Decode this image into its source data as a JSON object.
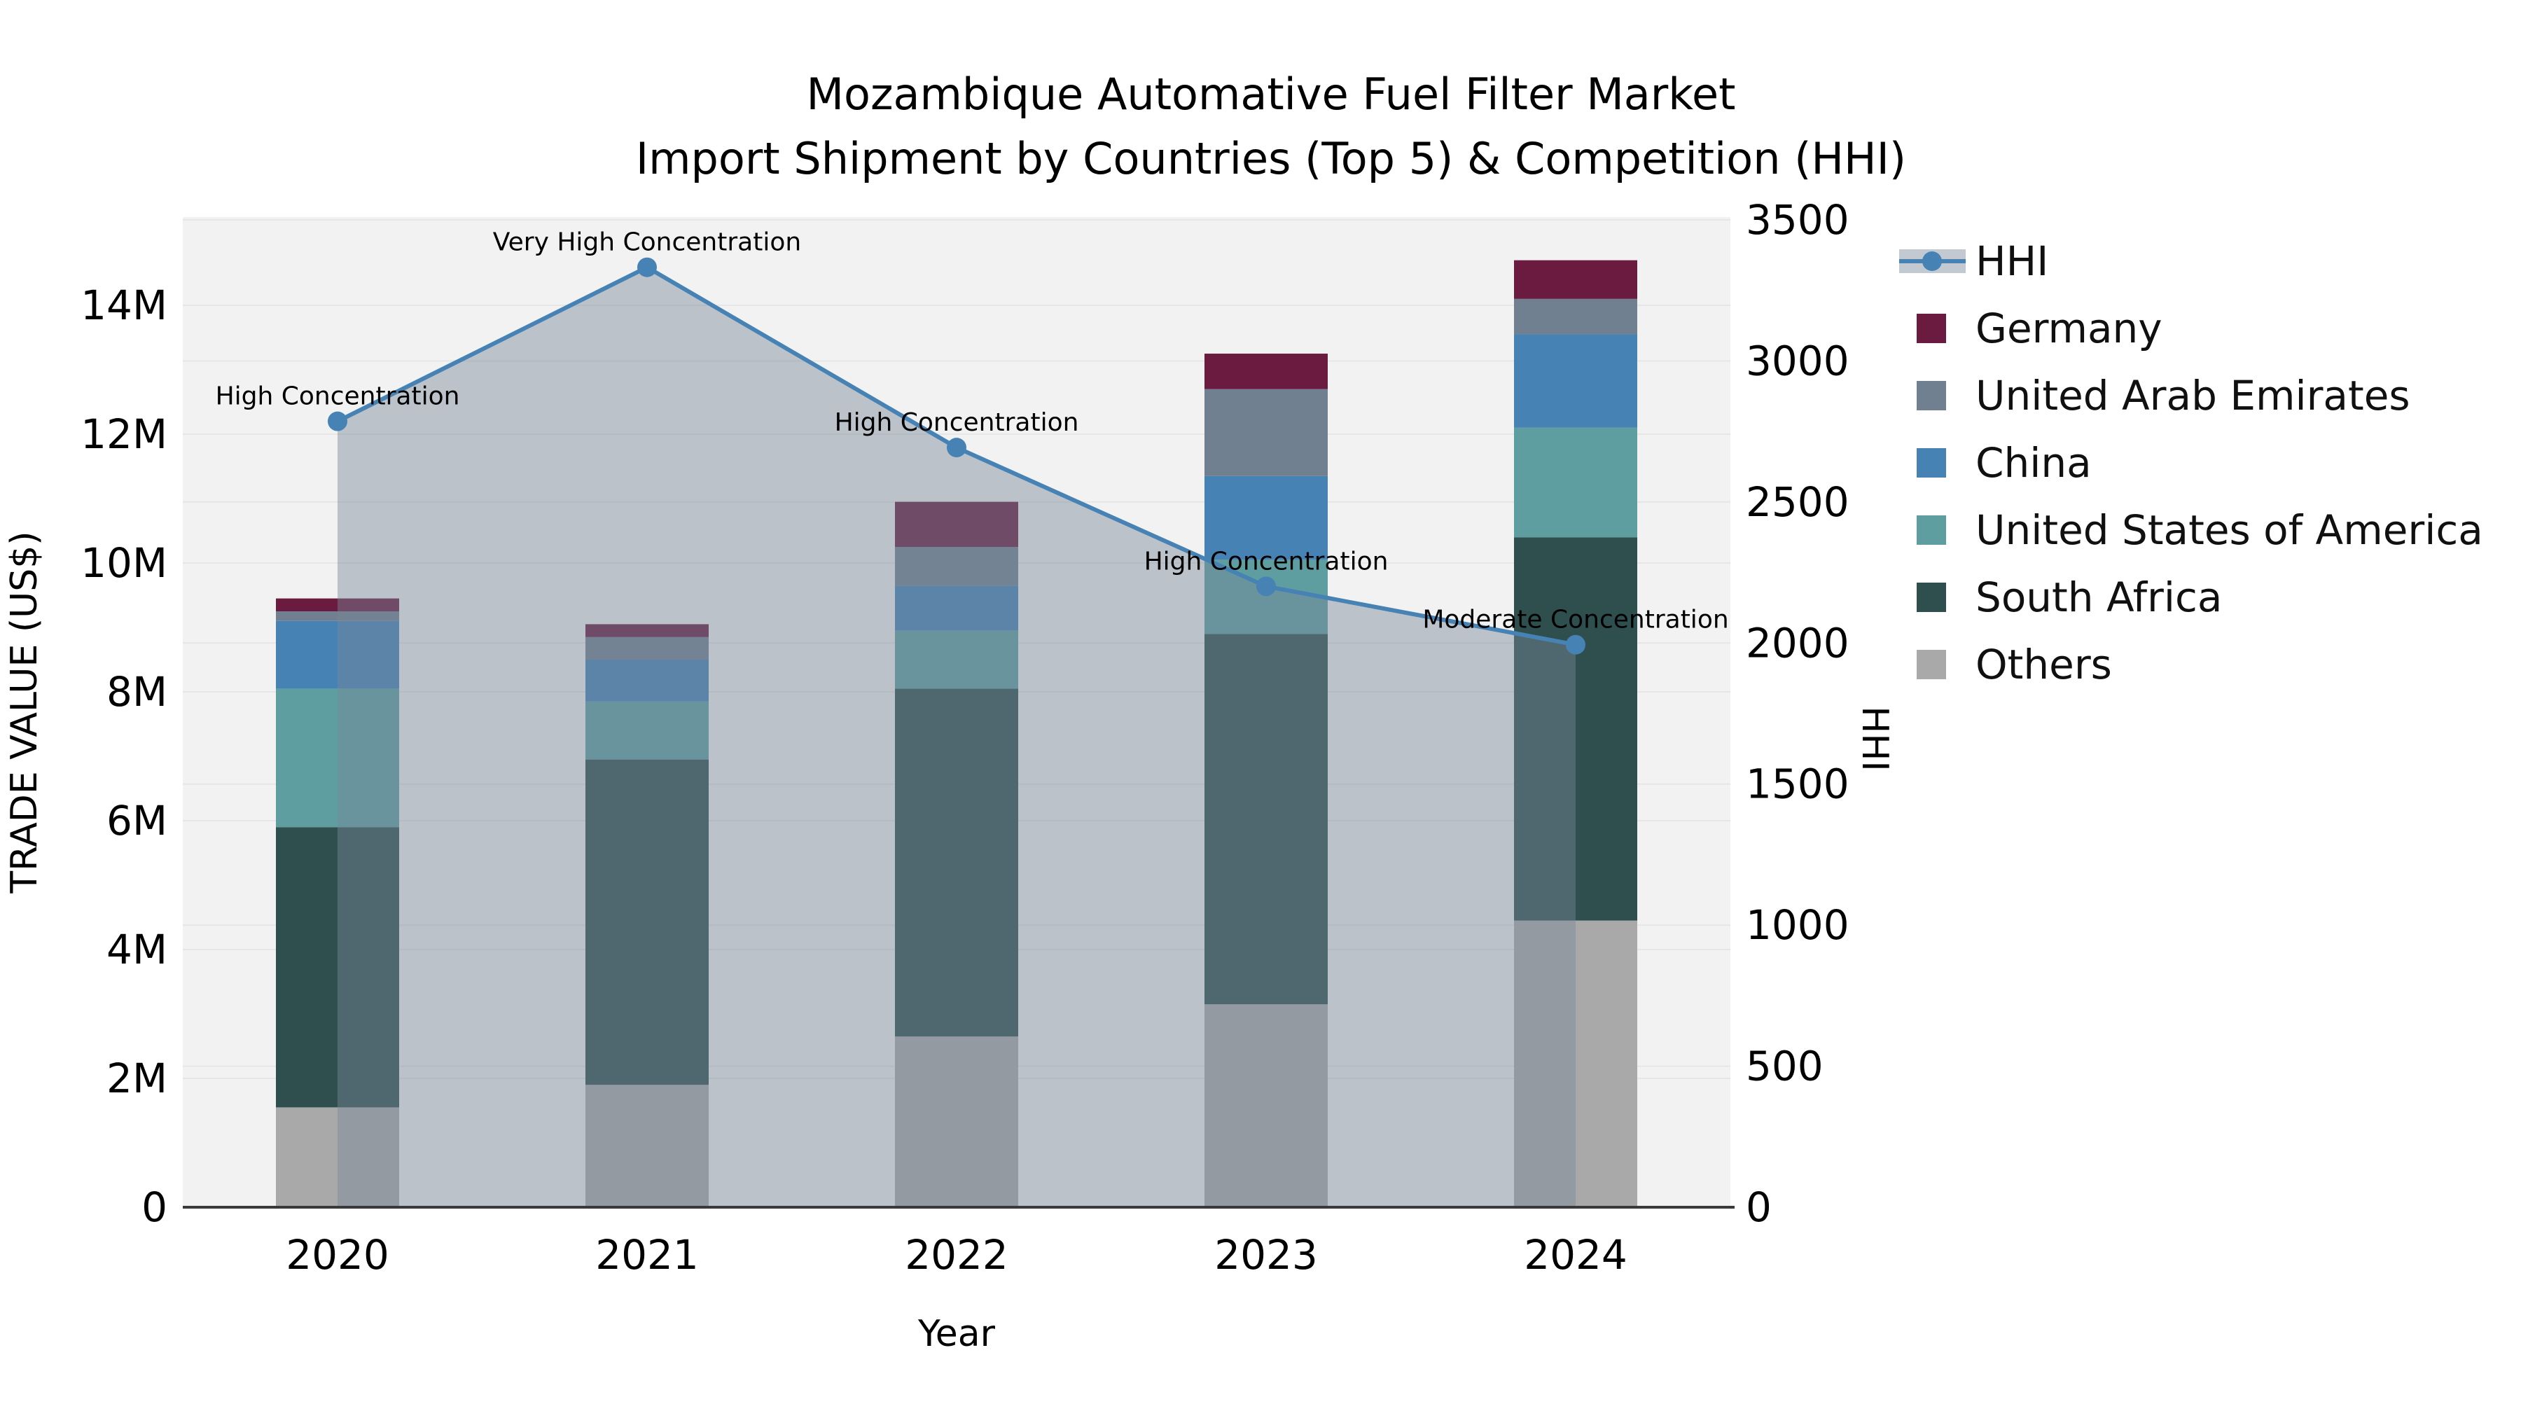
{
  "title": {
    "line1": "Mozambique Automative Fuel Filter Market",
    "line2": "Import Shipment by Countries (Top 5) & Competition (HHI)"
  },
  "chart_data": {
    "type": "bar",
    "subtype": "stacked-bars-with-line-overlay",
    "categories": [
      "2020",
      "2021",
      "2022",
      "2023",
      "2024"
    ],
    "bar_unit": "million US$",
    "series": [
      {
        "name": "Others",
        "color": "#A9A9A9",
        "values": [
          1.55,
          1.9,
          2.65,
          3.15,
          4.45
        ]
      },
      {
        "name": "South Africa",
        "color": "#2F4F4F",
        "values": [
          4.35,
          5.05,
          5.4,
          5.75,
          5.95
        ]
      },
      {
        "name": "United States of America",
        "color": "#5F9EA0",
        "values": [
          2.15,
          0.9,
          0.9,
          1.15,
          1.7
        ]
      },
      {
        "name": "China",
        "color": "#4682B4",
        "values": [
          1.05,
          0.65,
          0.7,
          1.3,
          1.45
        ]
      },
      {
        "name": "United Arab Emirates",
        "color": "#708090",
        "values": [
          0.15,
          0.35,
          0.6,
          1.35,
          0.55
        ]
      },
      {
        "name": "Germany",
        "color": "#6B1B3F",
        "values": [
          0.2,
          0.2,
          0.7,
          0.55,
          0.6
        ]
      }
    ],
    "line_series": {
      "name": "HHI",
      "color": "#4682B4",
      "area_fill": "rgba(119,136,153,0.45)",
      "values": [
        2786,
        3332,
        2693,
        2201,
        1994
      ]
    },
    "annotations": [
      "High Concentration",
      "Very High Concentration",
      "High Concentration",
      "High Concentration",
      "Moderate Concentration"
    ],
    "xlabel": "Year",
    "left_axis": {
      "label": "TRADE VALUE (US$)",
      "tick_labels": [
        "0",
        "2M",
        "4M",
        "6M",
        "8M",
        "10M",
        "12M",
        "14M"
      ],
      "tick_values_m": [
        0,
        2,
        4,
        6,
        8,
        10,
        12,
        14
      ],
      "max_m": 15.37
    },
    "right_axis": {
      "label": "HHI",
      "tick_labels": [
        "0",
        "500",
        "1000",
        "1500",
        "2000",
        "2500",
        "3000",
        "3500"
      ],
      "tick_values": [
        0,
        500,
        1000,
        1500,
        2000,
        2500,
        3000,
        3500
      ],
      "max": 3510
    },
    "grid": true,
    "plot_background": "#f2f2f2",
    "gridline_color": "#e6e6e6",
    "axis_line_color": "#3a3a3a",
    "legend_position": "right"
  },
  "legend": {
    "items": [
      {
        "label": "HHI",
        "type": "line",
        "color": "#4682B4",
        "band": "rgba(119,136,153,0.45)"
      },
      {
        "label": "Germany",
        "type": "swatch",
        "color": "#6B1B3F"
      },
      {
        "label": "United Arab Emirates",
        "type": "swatch",
        "color": "#708090"
      },
      {
        "label": "China",
        "type": "swatch",
        "color": "#4682B4"
      },
      {
        "label": "United States of America",
        "type": "swatch",
        "color": "#5F9EA0"
      },
      {
        "label": "South Africa",
        "type": "swatch",
        "color": "#2F4F4F"
      },
      {
        "label": "Others",
        "type": "swatch",
        "color": "#A9A9A9"
      }
    ]
  }
}
